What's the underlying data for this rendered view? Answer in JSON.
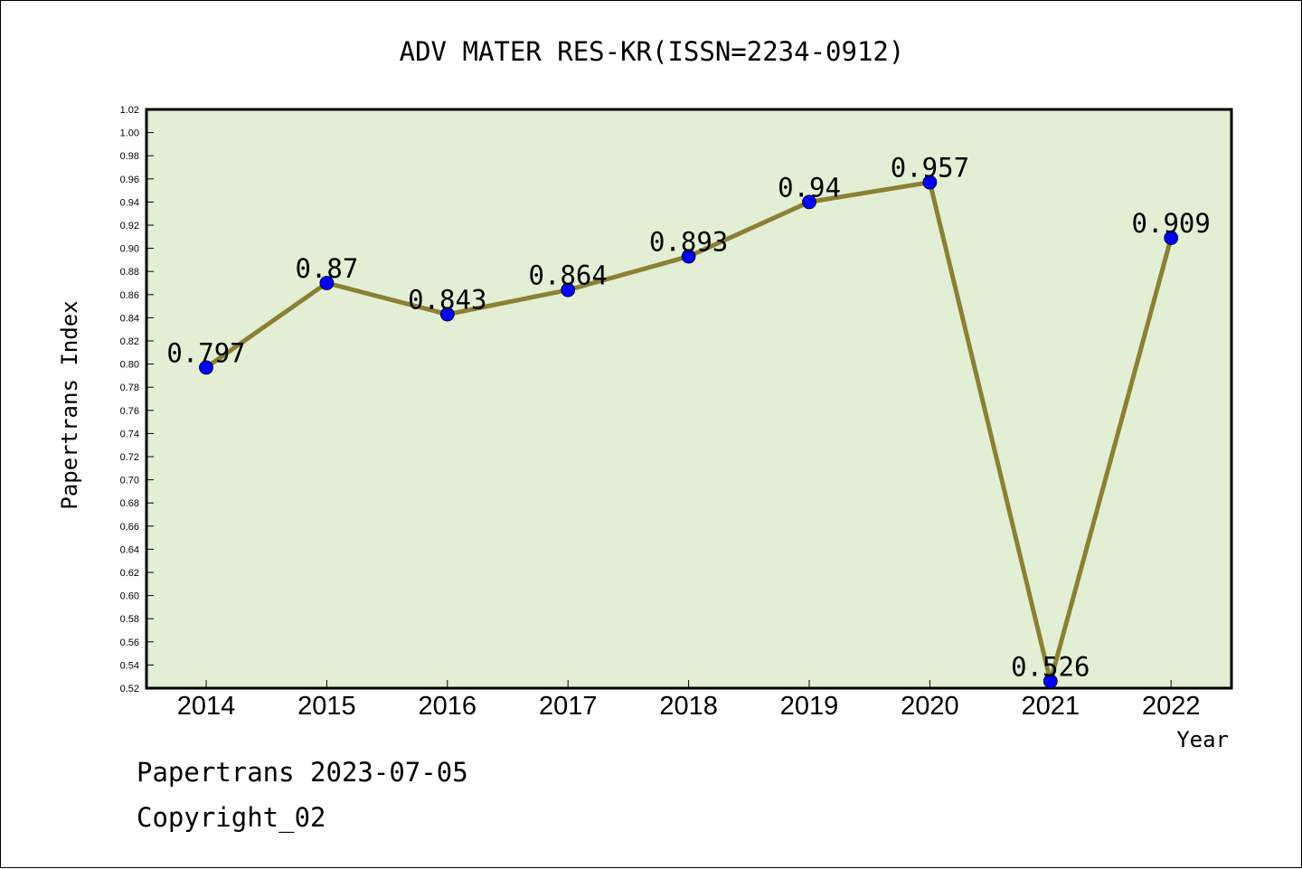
{
  "chart_data": {
    "type": "line",
    "title": "ADV MATER RES-KR(ISSN=2234-0912)",
    "xlabel": "Year",
    "ylabel": "Papertrans Index",
    "categories": [
      "2014",
      "2015",
      "2016",
      "2017",
      "2018",
      "2019",
      "2020",
      "2021",
      "2022"
    ],
    "series": [
      {
        "values": [
          0.797,
          0.87,
          0.843,
          0.864,
          0.893,
          0.94,
          0.957,
          0.526,
          0.909
        ],
        "labels": [
          "0.797",
          "0.87",
          "0.843",
          "0.864",
          "0.893",
          "0.94",
          "0.957",
          "0.526",
          "0.909"
        ]
      }
    ],
    "ylim": [
      0.52,
      1.02
    ],
    "yticks": [
      "0.52",
      "0.54",
      "0.56",
      "0.58",
      "0.60",
      "0.62",
      "0.64",
      "0.66",
      "0.68",
      "0.70",
      "0.72",
      "0.74",
      "0.76",
      "0.78",
      "0.80",
      "0.82",
      "0.84",
      "0.86",
      "0.88",
      "0.90",
      "0.92",
      "0.94",
      "0.96",
      "0.98",
      "1.00",
      "1.02"
    ],
    "grid": false,
    "legend": "none",
    "colors": {
      "plot_background": "#e2efd5",
      "line": "#8c8035",
      "marker": "#0000ff"
    }
  },
  "footer": {
    "source": "Papertrans 2023-07-05",
    "copyright": "Copyright_02"
  }
}
